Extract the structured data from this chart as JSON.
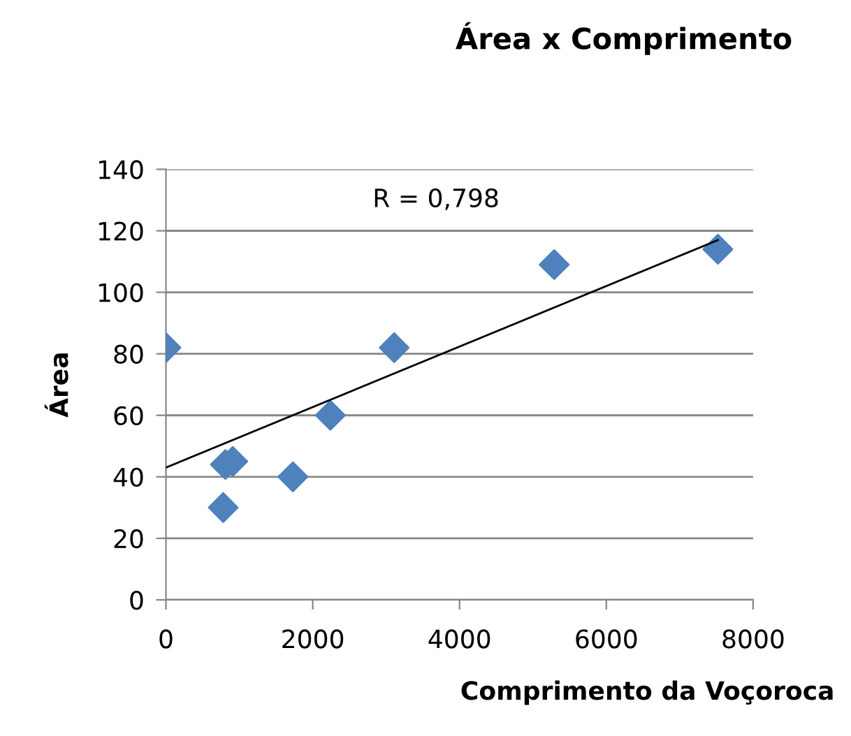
{
  "chart_data": {
    "type": "scatter",
    "title": "Área x Comprimento",
    "xlabel": "Comprimento da Voçoroca",
    "ylabel": "Área",
    "series": [
      {
        "color": "#4f81bd",
        "marker": "diamond",
        "x": [
          0,
          780,
          810,
          910,
          1730,
          2240,
          3110,
          5290,
          7520
        ],
        "values": [
          82,
          30,
          44,
          45,
          40,
          60,
          82,
          109,
          114
        ]
      },
      {
        "type": "line",
        "color": "#000000",
        "marker": "none",
        "x": [
          0,
          7520
        ],
        "values": [
          43,
          117
        ]
      }
    ],
    "annotations": [
      "R = 0,798"
    ],
    "xlim": [
      0,
      8000
    ],
    "xticks": [
      0,
      2000,
      4000,
      6000,
      8000
    ],
    "ylim": [
      0,
      140
    ],
    "yticks": [
      0,
      20,
      40,
      60,
      80,
      100,
      120,
      140
    ],
    "grid": "y",
    "legend": false
  }
}
